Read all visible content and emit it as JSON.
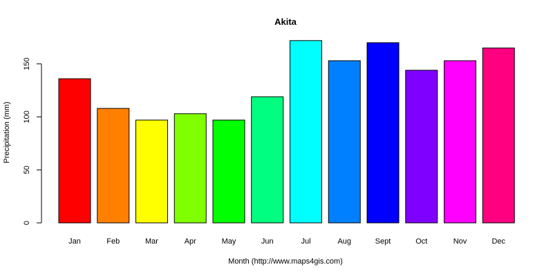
{
  "chart_data": {
    "type": "bar",
    "title": "Akita",
    "xlabel": "Month (http://www.maps4gis.com)",
    "ylabel": "Precipitation (mm)",
    "categories": [
      "Jan",
      "Feb",
      "Mar",
      "Apr",
      "May",
      "Jun",
      "Jul",
      "Aug",
      "Sept",
      "Oct",
      "Nov",
      "Dec"
    ],
    "values": [
      136,
      108,
      97,
      103,
      97,
      119,
      172,
      153,
      170,
      144,
      153,
      165
    ],
    "colors": [
      "#FF0000",
      "#FF8000",
      "#FFFF00",
      "#80FF00",
      "#00FF00",
      "#00FF80",
      "#00FFFF",
      "#0080FF",
      "#0000FF",
      "#8000FF",
      "#FF00FF",
      "#FF0080"
    ],
    "ylim": [
      0,
      175
    ],
    "yticks": [
      0,
      50,
      100,
      150
    ],
    "grid": false,
    "legend": "none"
  }
}
